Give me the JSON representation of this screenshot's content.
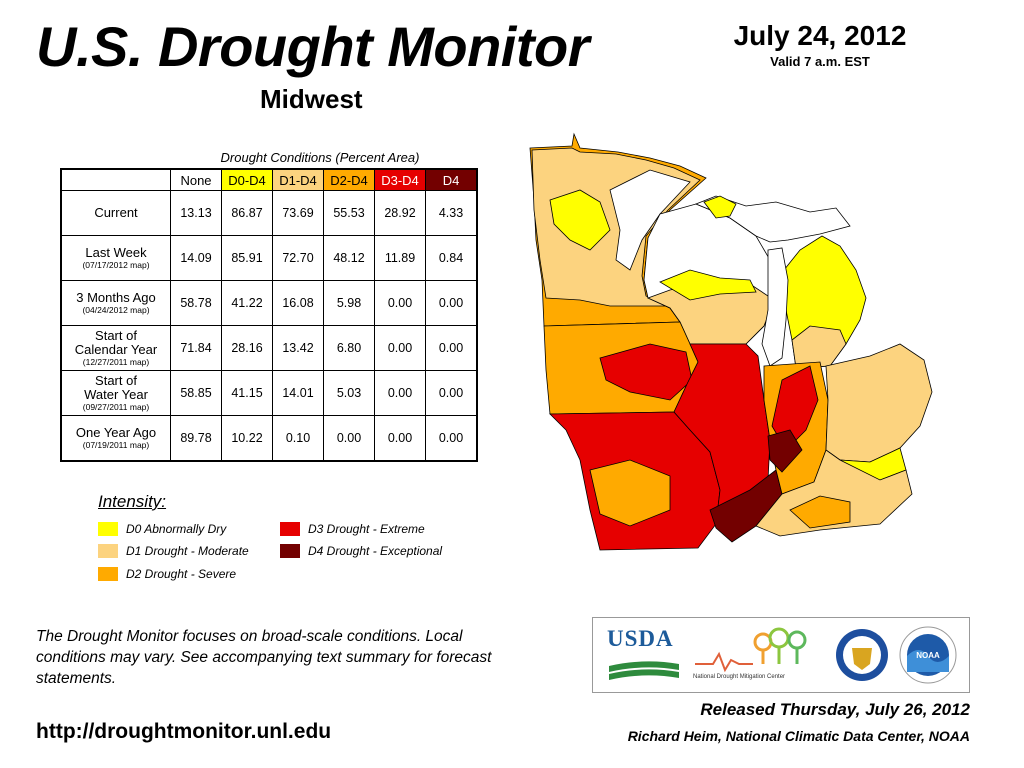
{
  "header": {
    "title": "U.S. Drought Monitor",
    "region": "Midwest",
    "date": "July 24, 2012",
    "valid": "Valid 7 a.m. EST"
  },
  "table": {
    "caption": "Drought Conditions (Percent Area)",
    "columns": [
      {
        "label": "None",
        "bg": "#ffffff",
        "fg": "#000000"
      },
      {
        "label": "D0-D4",
        "bg": "#ffff00",
        "fg": "#000000"
      },
      {
        "label": "D1-D4",
        "bg": "#fcd37f",
        "fg": "#000000"
      },
      {
        "label": "D2-D4",
        "bg": "#ffaa00",
        "fg": "#000000"
      },
      {
        "label": "D3-D4",
        "bg": "#e60000",
        "fg": "#ffffff"
      },
      {
        "label": "D4",
        "bg": "#730000",
        "fg": "#ffffff"
      }
    ],
    "rows": [
      {
        "label": "Current",
        "sub": "",
        "values": [
          "13.13",
          "86.87",
          "73.69",
          "55.53",
          "28.92",
          "4.33"
        ]
      },
      {
        "label": "Last Week",
        "sub": "(07/17/2012 map)",
        "values": [
          "14.09",
          "85.91",
          "72.70",
          "48.12",
          "11.89",
          "0.84"
        ]
      },
      {
        "label": "3 Months Ago",
        "sub": "(04/24/2012 map)",
        "values": [
          "58.78",
          "41.22",
          "16.08",
          "5.98",
          "0.00",
          "0.00"
        ]
      },
      {
        "label": "Start of\nCalendar Year",
        "sub": "(12/27/2011 map)",
        "values": [
          "71.84",
          "28.16",
          "13.42",
          "6.80",
          "0.00",
          "0.00"
        ]
      },
      {
        "label": "Start of\nWater Year",
        "sub": "(09/27/2011 map)",
        "values": [
          "58.85",
          "41.15",
          "14.01",
          "5.03",
          "0.00",
          "0.00"
        ]
      },
      {
        "label": "One Year Ago",
        "sub": "(07/19/2011 map)",
        "values": [
          "89.78",
          "10.22",
          "0.10",
          "0.00",
          "0.00",
          "0.00"
        ]
      }
    ]
  },
  "legend": {
    "title": "Intensity:",
    "items": [
      {
        "label": "D0 Abnormally Dry",
        "color": "#ffff00"
      },
      {
        "label": "D1 Drought - Moderate",
        "color": "#fcd37f"
      },
      {
        "label": "D2 Drought - Severe",
        "color": "#ffaa00"
      },
      {
        "label": "D3 Drought - Extreme",
        "color": "#e60000"
      },
      {
        "label": "D4 Drought - Exceptional",
        "color": "#730000"
      }
    ]
  },
  "note": "The Drought Monitor focuses on broad-scale conditions. Local conditions may vary. See accompanying text summary for forecast statements.",
  "footer": {
    "url": "http://droughtmonitor.unl.edu",
    "released": "Released Thursday, July 26, 2012",
    "author": "Richard Heim, National Climatic Data Center, NOAA"
  },
  "logos": {
    "usda": "USDA",
    "ndmc": "National  Drought Mitigation Center",
    "noaa": "NOAA"
  },
  "icons": [
    "usda-logo",
    "ndmc-logo",
    "commerce-seal",
    "noaa-logo"
  ]
}
